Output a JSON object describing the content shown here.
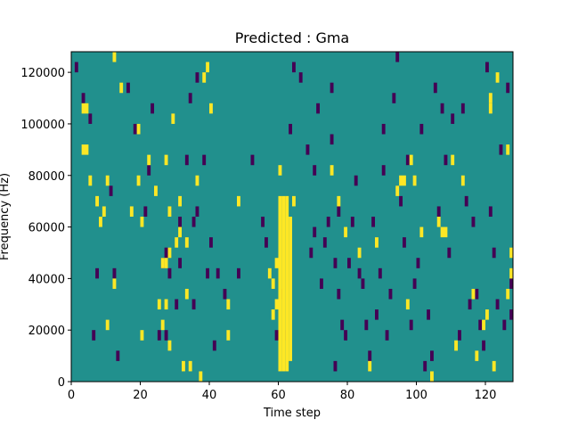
{
  "chart_data": {
    "type": "heatmap",
    "title": "Predicted : Gma",
    "xlabel": "Time step",
    "ylabel": "Frequency (Hz)",
    "xlim": [
      0,
      128
    ],
    "ylim": [
      0,
      128000
    ],
    "x_ticks": [
      0,
      20,
      40,
      60,
      80,
      100,
      120
    ],
    "y_ticks": [
      0,
      20000,
      40000,
      60000,
      80000,
      100000,
      120000
    ],
    "x_tick_labels": [
      "0",
      "20",
      "40",
      "60",
      "80",
      "100",
      "120"
    ],
    "y_tick_labels": [
      "0",
      "20000",
      "40000",
      "60000",
      "80000",
      "100000",
      "120000"
    ],
    "grid": false,
    "colormap": "viridis",
    "background_value": "mid",
    "colors": {
      "background": "#21908d",
      "high": "#fde725",
      "low": "#440154",
      "axis": "#000000"
    },
    "cell_height_hz": 4000,
    "high_columns": [
      {
        "x": 60,
        "y_from": 4000,
        "y_to": 72000
      },
      {
        "x": 61,
        "y_from": 4000,
        "y_to": 72000
      },
      {
        "x": 62,
        "y_from": 4000,
        "y_to": 72000
      },
      {
        "x": 63,
        "y_from": 8000,
        "y_to": 64000
      }
    ],
    "high_cells": [
      [
        3,
        104000
      ],
      [
        4,
        104000
      ],
      [
        3,
        88000
      ],
      [
        4,
        88000
      ],
      [
        5,
        76000
      ],
      [
        7,
        68000
      ],
      [
        8,
        60000
      ],
      [
        9,
        64000
      ],
      [
        10,
        76000
      ],
      [
        10,
        20000
      ],
      [
        12,
        36000
      ],
      [
        12,
        124000
      ],
      [
        14,
        112000
      ],
      [
        17,
        64000
      ],
      [
        19,
        96000
      ],
      [
        19,
        76000
      ],
      [
        20,
        60000
      ],
      [
        20,
        16000
      ],
      [
        22,
        84000
      ],
      [
        24,
        72000
      ],
      [
        25,
        28000
      ],
      [
        26,
        44000
      ],
      [
        26,
        20000
      ],
      [
        27,
        84000
      ],
      [
        27,
        44000
      ],
      [
        27,
        28000
      ],
      [
        28,
        12000
      ],
      [
        28,
        64000
      ],
      [
        28,
        48000
      ],
      [
        29,
        100000
      ],
      [
        30,
        52000
      ],
      [
        31,
        68000
      ],
      [
        31,
        56000
      ],
      [
        32,
        4000
      ],
      [
        33,
        52000
      ],
      [
        33,
        32000
      ],
      [
        34,
        4000
      ],
      [
        36,
        76000
      ],
      [
        37,
        0
      ],
      [
        38,
        116000
      ],
      [
        39,
        120000
      ],
      [
        40,
        104000
      ],
      [
        45,
        28000
      ],
      [
        45,
        16000
      ],
      [
        48,
        68000
      ],
      [
        57,
        40000
      ],
      [
        58,
        36000
      ],
      [
        58,
        24000
      ],
      [
        59,
        28000
      ],
      [
        59,
        44000
      ],
      [
        60,
        80000
      ],
      [
        64,
        68000
      ],
      [
        75,
        80000
      ],
      [
        77,
        68000
      ],
      [
        79,
        56000
      ],
      [
        83,
        48000
      ],
      [
        86,
        4000
      ],
      [
        88,
        52000
      ],
      [
        94,
        72000
      ],
      [
        95,
        76000
      ],
      [
        96,
        76000
      ],
      [
        97,
        28000
      ],
      [
        98,
        84000
      ],
      [
        99,
        76000
      ],
      [
        101,
        56000
      ],
      [
        104,
        0
      ],
      [
        106,
        60000
      ],
      [
        107,
        56000
      ],
      [
        108,
        56000
      ],
      [
        110,
        84000
      ],
      [
        111,
        12000
      ],
      [
        113,
        76000
      ],
      [
        116,
        32000
      ],
      [
        117,
        8000
      ],
      [
        119,
        20000
      ],
      [
        120,
        24000
      ],
      [
        121,
        104000
      ],
      [
        121,
        108000
      ],
      [
        122,
        4000
      ],
      [
        123,
        116000
      ],
      [
        126,
        88000
      ],
      [
        126,
        32000
      ],
      [
        127,
        48000
      ],
      [
        127,
        40000
      ],
      [
        128,
        72000
      ]
    ],
    "low_cells": [
      [
        1,
        120000
      ],
      [
        3,
        108000
      ],
      [
        5,
        100000
      ],
      [
        6,
        16000
      ],
      [
        7,
        40000
      ],
      [
        11,
        72000
      ],
      [
        12,
        40000
      ],
      [
        13,
        8000
      ],
      [
        16,
        112000
      ],
      [
        18,
        96000
      ],
      [
        21,
        64000
      ],
      [
        22,
        80000
      ],
      [
        23,
        104000
      ],
      [
        25,
        16000
      ],
      [
        26,
        44000
      ],
      [
        27,
        48000
      ],
      [
        27,
        16000
      ],
      [
        28,
        40000
      ],
      [
        30,
        28000
      ],
      [
        31,
        60000
      ],
      [
        31,
        44000
      ],
      [
        33,
        84000
      ],
      [
        34,
        108000
      ],
      [
        35,
        28000
      ],
      [
        35,
        60000
      ],
      [
        36,
        64000
      ],
      [
        36,
        116000
      ],
      [
        38,
        84000
      ],
      [
        39,
        40000
      ],
      [
        40,
        52000
      ],
      [
        41,
        12000
      ],
      [
        42,
        40000
      ],
      [
        44,
        32000
      ],
      [
        48,
        40000
      ],
      [
        52,
        84000
      ],
      [
        55,
        60000
      ],
      [
        56,
        52000
      ],
      [
        59,
        16000
      ],
      [
        60,
        32000
      ],
      [
        61,
        16000
      ],
      [
        63,
        96000
      ],
      [
        64,
        120000
      ],
      [
        66,
        116000
      ],
      [
        68,
        88000
      ],
      [
        69,
        48000
      ],
      [
        70,
        56000
      ],
      [
        70,
        80000
      ],
      [
        71,
        104000
      ],
      [
        72,
        36000
      ],
      [
        73,
        52000
      ],
      [
        74,
        60000
      ],
      [
        75,
        112000
      ],
      [
        75,
        92000
      ],
      [
        76,
        4000
      ],
      [
        76,
        44000
      ],
      [
        77,
        32000
      ],
      [
        77,
        64000
      ],
      [
        78,
        20000
      ],
      [
        79,
        16000
      ],
      [
        80,
        44000
      ],
      [
        81,
        60000
      ],
      [
        82,
        76000
      ],
      [
        83,
        40000
      ],
      [
        84,
        36000
      ],
      [
        85,
        20000
      ],
      [
        86,
        8000
      ],
      [
        87,
        60000
      ],
      [
        88,
        24000
      ],
      [
        89,
        40000
      ],
      [
        90,
        96000
      ],
      [
        90,
        80000
      ],
      [
        91,
        16000
      ],
      [
        92,
        32000
      ],
      [
        93,
        108000
      ],
      [
        94,
        124000
      ],
      [
        95,
        68000
      ],
      [
        96,
        52000
      ],
      [
        97,
        84000
      ],
      [
        98,
        20000
      ],
      [
        99,
        36000
      ],
      [
        100,
        44000
      ],
      [
        101,
        96000
      ],
      [
        102,
        4000
      ],
      [
        103,
        24000
      ],
      [
        104,
        8000
      ],
      [
        105,
        112000
      ],
      [
        106,
        64000
      ],
      [
        107,
        104000
      ],
      [
        108,
        84000
      ],
      [
        109,
        48000
      ],
      [
        110,
        100000
      ],
      [
        112,
        16000
      ],
      [
        113,
        104000
      ],
      [
        114,
        68000
      ],
      [
        115,
        28000
      ],
      [
        116,
        60000
      ],
      [
        117,
        32000
      ],
      [
        118,
        20000
      ],
      [
        119,
        12000
      ],
      [
        120,
        120000
      ],
      [
        121,
        64000
      ],
      [
        122,
        48000
      ],
      [
        123,
        28000
      ],
      [
        124,
        88000
      ],
      [
        125,
        20000
      ],
      [
        126,
        112000
      ],
      [
        127,
        36000
      ],
      [
        127,
        24000
      ],
      [
        128,
        100000
      ]
    ]
  }
}
